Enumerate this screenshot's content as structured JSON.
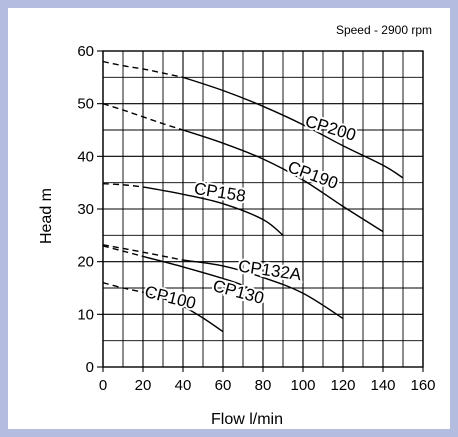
{
  "colors": {
    "background": "#b4bde0",
    "panel": "#ffffff",
    "ink": "#000000"
  },
  "chart_data": {
    "type": "line",
    "annotation": "Speed - 2900 rpm",
    "xlabel": "Flow l/min",
    "ylabel": "Head m",
    "xlim": [
      0,
      160
    ],
    "ylim": [
      0,
      60
    ],
    "grid": true,
    "x_ticks": [
      0,
      20,
      40,
      60,
      80,
      100,
      120,
      140,
      160
    ],
    "y_ticks": [
      0,
      10,
      20,
      30,
      40,
      50,
      60
    ],
    "series": [
      {
        "name": "CP200",
        "dashed": {
          "x": [
            0,
            10,
            20,
            30,
            40
          ],
          "y": [
            58,
            57.2,
            56.6,
            55.8,
            55
          ]
        },
        "x": [
          40,
          60,
          80,
          100,
          120,
          140,
          150
        ],
        "y": [
          55,
          52.5,
          49.5,
          46,
          42,
          38.3,
          35.9
        ]
      },
      {
        "name": "CP190",
        "dashed": {
          "x": [
            0,
            10,
            20,
            30,
            40
          ],
          "y": [
            50,
            48.8,
            47.5,
            46.2,
            45
          ]
        },
        "x": [
          40,
          60,
          80,
          100,
          120,
          140
        ],
        "y": [
          45,
          42.5,
          39.5,
          35.5,
          30.5,
          25.7
        ]
      },
      {
        "name": "CP158",
        "dashed": {
          "x": [
            0,
            10,
            20
          ],
          "y": [
            34.8,
            34.6,
            34.2
          ]
        },
        "x": [
          20,
          40,
          60,
          80,
          90
        ],
        "y": [
          34.2,
          32.8,
          31,
          28,
          25
        ]
      },
      {
        "name": "CP132A",
        "dashed": {
          "x": [
            0,
            20,
            40
          ],
          "y": [
            23.2,
            21.8,
            20.3
          ]
        },
        "x": [
          40,
          60,
          80,
          100,
          120
        ],
        "y": [
          20.3,
          19.2,
          17,
          14,
          9.2
        ]
      },
      {
        "name": "CP130",
        "dashed": {
          "x": [
            0,
            10,
            20
          ],
          "y": [
            23,
            22,
            21
          ]
        },
        "x": [
          20,
          40,
          60,
          70,
          80
        ],
        "y": [
          21,
          19,
          16.8,
          15.5,
          13.5
        ]
      },
      {
        "name": "CP100",
        "dashed": {
          "x": [
            0,
            10,
            20
          ],
          "y": [
            16,
            15,
            14.2
          ]
        },
        "x": [
          20,
          30,
          40,
          50,
          60
        ],
        "y": [
          14.2,
          13,
          11.5,
          9.3,
          6.7
        ]
      }
    ]
  }
}
